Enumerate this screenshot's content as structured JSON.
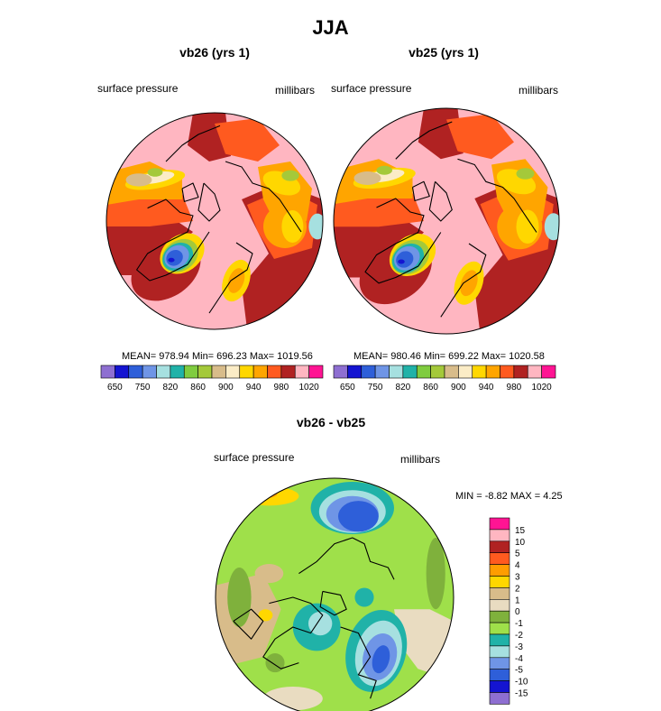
{
  "figure": {
    "title": "JJA"
  },
  "palette_abs": [
    "#8e6fd1",
    "#1414d1",
    "#2e5fd9",
    "#6f95e6",
    "#a6e0e0",
    "#20b2a8",
    "#7fcc3f",
    "#a4c93a",
    "#d8bc8a",
    "#fbecc6",
    "#ffd700",
    "#ffa500",
    "#ff5a1f",
    "#b02222",
    "#ffb6c1",
    "#ff1493"
  ],
  "palette_diff": [
    "#8e6fd1",
    "#1414d1",
    "#2e5fd9",
    "#6f95e6",
    "#a6e0e0",
    "#20b2a8",
    "#9fe04a",
    "#7fb13c",
    "#e9dcc1",
    "#d8bc8a",
    "#ffd700",
    "#ff9d00",
    "#ff5a1f",
    "#b02222",
    "#ffb6c1",
    "#ff1493"
  ],
  "chart_data": [
    {
      "type": "heatmap",
      "title": "vb26 (yrs 1)",
      "left_label": "surface pressure",
      "right_label": "millibars",
      "stats": "MEAN= 978.94  Min= 696.23  Max= 1019.56",
      "mean": 978.94,
      "min": 696.23,
      "max": 1019.56,
      "colorbar_labels": [
        "650",
        "750",
        "820",
        "860",
        "900",
        "940",
        "980",
        "1020"
      ],
      "projection": "north polar stereographic"
    },
    {
      "type": "heatmap",
      "title": "vb25 (yrs 1)",
      "left_label": "surface pressure",
      "right_label": "millibars",
      "stats": "MEAN= 980.46  Min= 699.22  Max= 1020.58",
      "mean": 980.46,
      "min": 699.22,
      "max": 1020.58,
      "colorbar_labels": [
        "650",
        "750",
        "820",
        "860",
        "900",
        "940",
        "980",
        "1020"
      ],
      "projection": "north polar stereographic"
    },
    {
      "type": "heatmap",
      "title": "vb26 - vb25",
      "left_label": "surface pressure",
      "right_label": "millibars",
      "stats": "MIN =  -8.82 MAX =   4.25",
      "min": -8.82,
      "max": 4.25,
      "colorbar_labels": [
        "15",
        "10",
        "5",
        "4",
        "3",
        "2",
        "1",
        "0",
        "-1",
        "-2",
        "-3",
        "-4",
        "-5",
        "-10",
        "-15"
      ],
      "projection": "north polar stereographic"
    }
  ]
}
